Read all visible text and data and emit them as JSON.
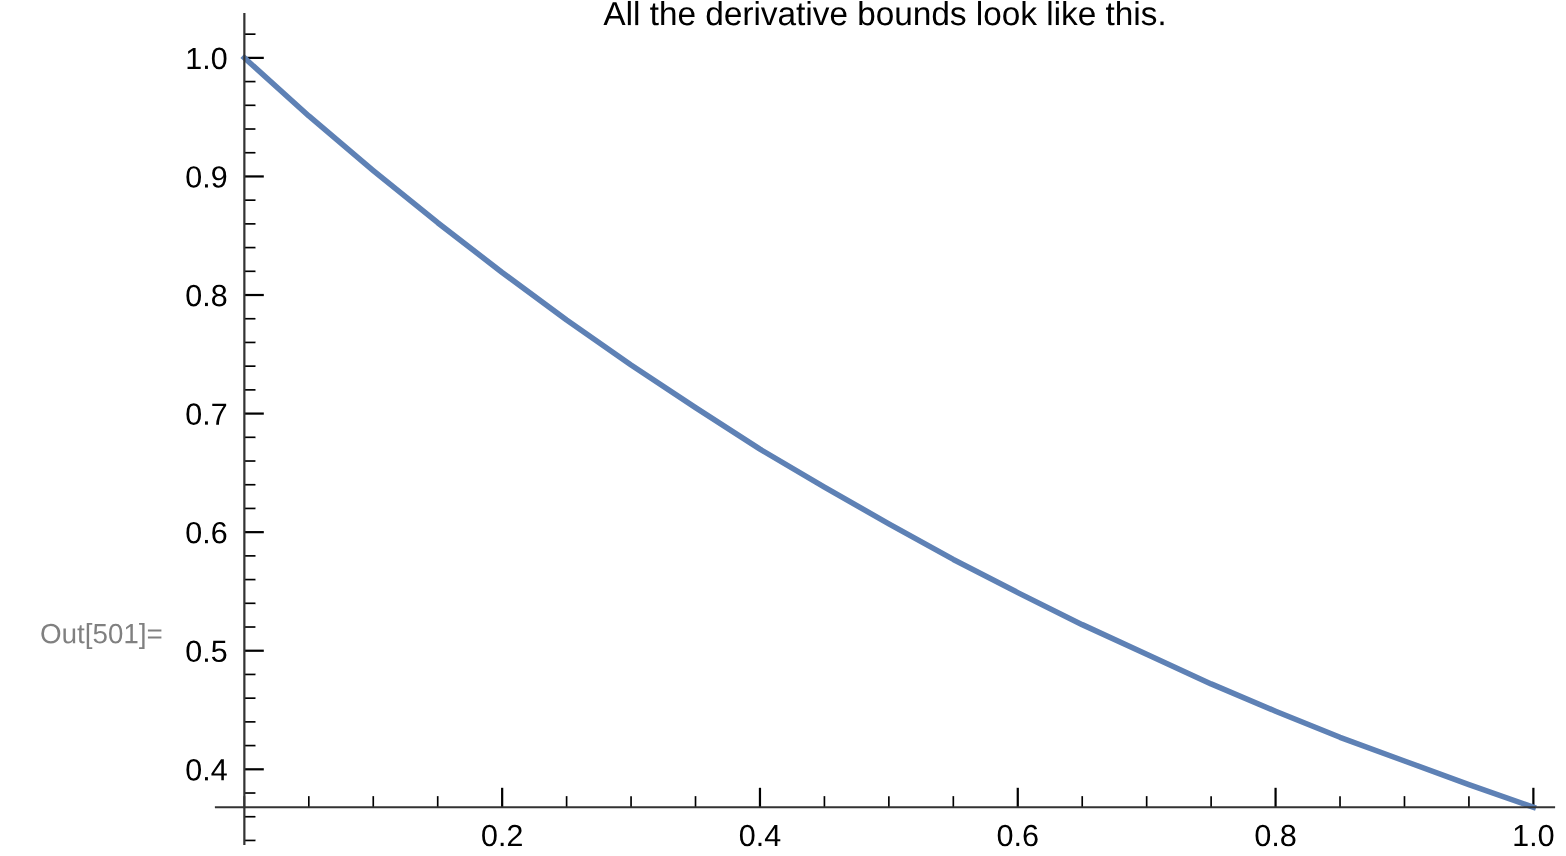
{
  "chart_data": {
    "type": "line",
    "title": "All the derivative bounds look like this.",
    "x": [
      0,
      0.05,
      0.1,
      0.15,
      0.2,
      0.25,
      0.3,
      0.35,
      0.4,
      0.45,
      0.5,
      0.55,
      0.6,
      0.65,
      0.7,
      0.75,
      0.8,
      0.85,
      0.9,
      0.95,
      1.0
    ],
    "series": [
      {
        "color": "#5e81b5",
        "values": [
          1.0,
          0.951,
          0.905,
          0.861,
          0.819,
          0.779,
          0.741,
          0.705,
          0.67,
          0.638,
          0.607,
          0.577,
          0.549,
          0.522,
          0.497,
          0.472,
          0.449,
          0.427,
          0.407,
          0.387,
          0.368
        ]
      }
    ],
    "xlim": [
      -0.022,
      1.016
    ],
    "ylim": [
      0.337,
      1.037
    ],
    "xticks": [
      0.2,
      0.4,
      0.6,
      0.8,
      {
        "value": 1.0,
        "label": "1.0"
      }
    ],
    "yticks": [
      0.4,
      0.5,
      0.6,
      0.7,
      0.8,
      0.9,
      {
        "value": 1.0,
        "label": "1.0"
      }
    ],
    "annotations": [
      "Out[501]="
    ],
    "grid": false,
    "legend": false,
    "marker": "none",
    "line_style": "solid"
  }
}
